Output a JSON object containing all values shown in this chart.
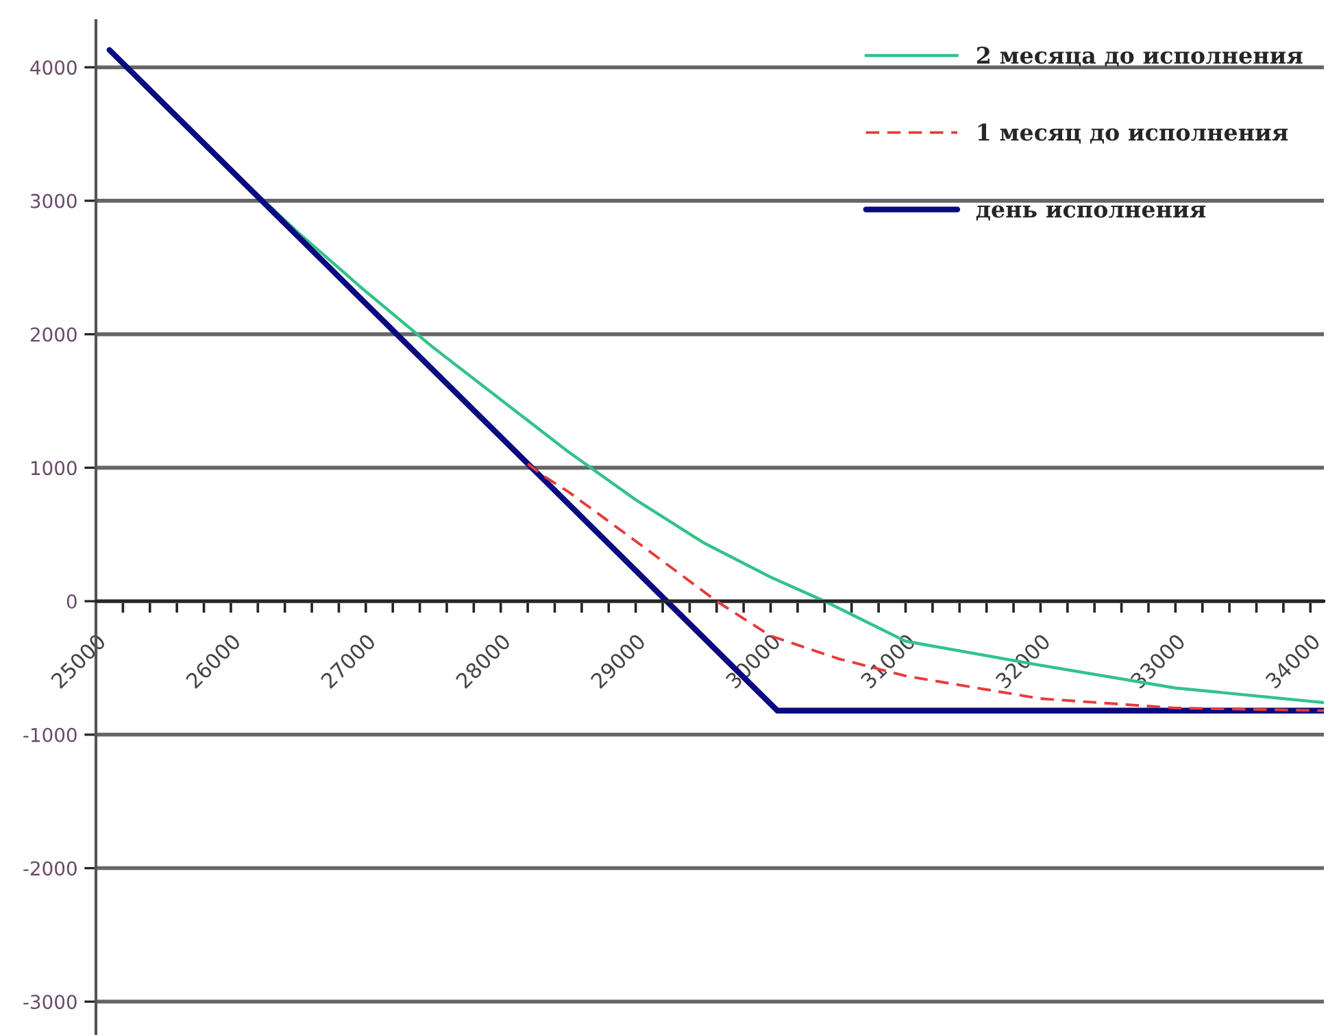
{
  "chart_data": {
    "type": "line",
    "series": [
      {
        "name": "2 месяца до исполнения",
        "color": "#33c28a",
        "line_style": "solid",
        "x": [
          25100,
          26000,
          26500,
          27000,
          27500,
          28000,
          28500,
          29000,
          29500,
          30000,
          30400,
          31000,
          32000,
          33000,
          34000,
          34100
        ],
        "values": [
          4130,
          3230,
          2760,
          2320,
          1900,
          1510,
          1120,
          760,
          440,
          180,
          0,
          -300,
          -480,
          -650,
          -750,
          -760
        ]
      },
      {
        "name": "1 месяц до исполнения",
        "color": "#e83a3a",
        "line_style": "dashed",
        "x": [
          28200,
          28300,
          28500,
          29000,
          29600,
          30000,
          30500,
          31000,
          32000,
          33000,
          34100
        ],
        "values": [
          1030,
          950,
          820,
          450,
          0,
          -260,
          -430,
          -560,
          -730,
          -800,
          -820
        ]
      },
      {
        "name": "день исполнения",
        "color": "#0a0a80",
        "line_style": "solid",
        "x": [
          25100,
          30050,
          34100
        ],
        "values": [
          4130,
          -820,
          -820
        ]
      }
    ],
    "xlim": [
      25000,
      34100
    ],
    "ylim": [
      -3250,
      4350
    ],
    "xticks": [
      25000,
      {
        "value": 25200,
        "label": null
      },
      {
        "value": 25400,
        "label": null
      },
      {
        "value": 25600,
        "label": null
      },
      {
        "value": 25800,
        "label": null
      },
      26000,
      {
        "value": 26200,
        "label": null
      },
      {
        "value": 26400,
        "label": null
      },
      {
        "value": 26600,
        "label": null
      },
      {
        "value": 26800,
        "label": null
      },
      27000,
      {
        "value": 27200,
        "label": null
      },
      {
        "value": 27400,
        "label": null
      },
      {
        "value": 27600,
        "label": null
      },
      {
        "value": 27800,
        "label": null
      },
      28000,
      {
        "value": 28200,
        "label": null
      },
      {
        "value": 28400,
        "label": null
      },
      {
        "value": 28600,
        "label": null
      },
      {
        "value": 28800,
        "label": null
      },
      29000,
      {
        "value": 29200,
        "label": null
      },
      {
        "value": 29400,
        "label": null
      },
      {
        "value": 29600,
        "label": null
      },
      {
        "value": 29800,
        "label": null
      },
      30000,
      {
        "value": 30200,
        "label": null
      },
      {
        "value": 30400,
        "label": null
      },
      {
        "value": 30600,
        "label": null
      },
      {
        "value": 30800,
        "label": null
      },
      31000,
      {
        "value": 31200,
        "label": null
      },
      {
        "value": 31400,
        "label": null
      },
      {
        "value": 31600,
        "label": null
      },
      {
        "value": 31800,
        "label": null
      },
      32000,
      {
        "value": 32200,
        "label": null
      },
      {
        "value": 32400,
        "label": null
      },
      {
        "value": 32600,
        "label": null
      },
      {
        "value": 32800,
        "label": null
      },
      33000,
      {
        "value": 33200,
        "label": null
      },
      {
        "value": 33400,
        "label": null
      },
      {
        "value": 33600,
        "label": null
      },
      {
        "value": 33800,
        "label": null
      },
      34000
    ],
    "yticks": [
      -3000,
      -2000,
      -1000,
      0,
      1000,
      2000,
      3000,
      4000
    ],
    "grid": "y",
    "legend": "top right"
  }
}
